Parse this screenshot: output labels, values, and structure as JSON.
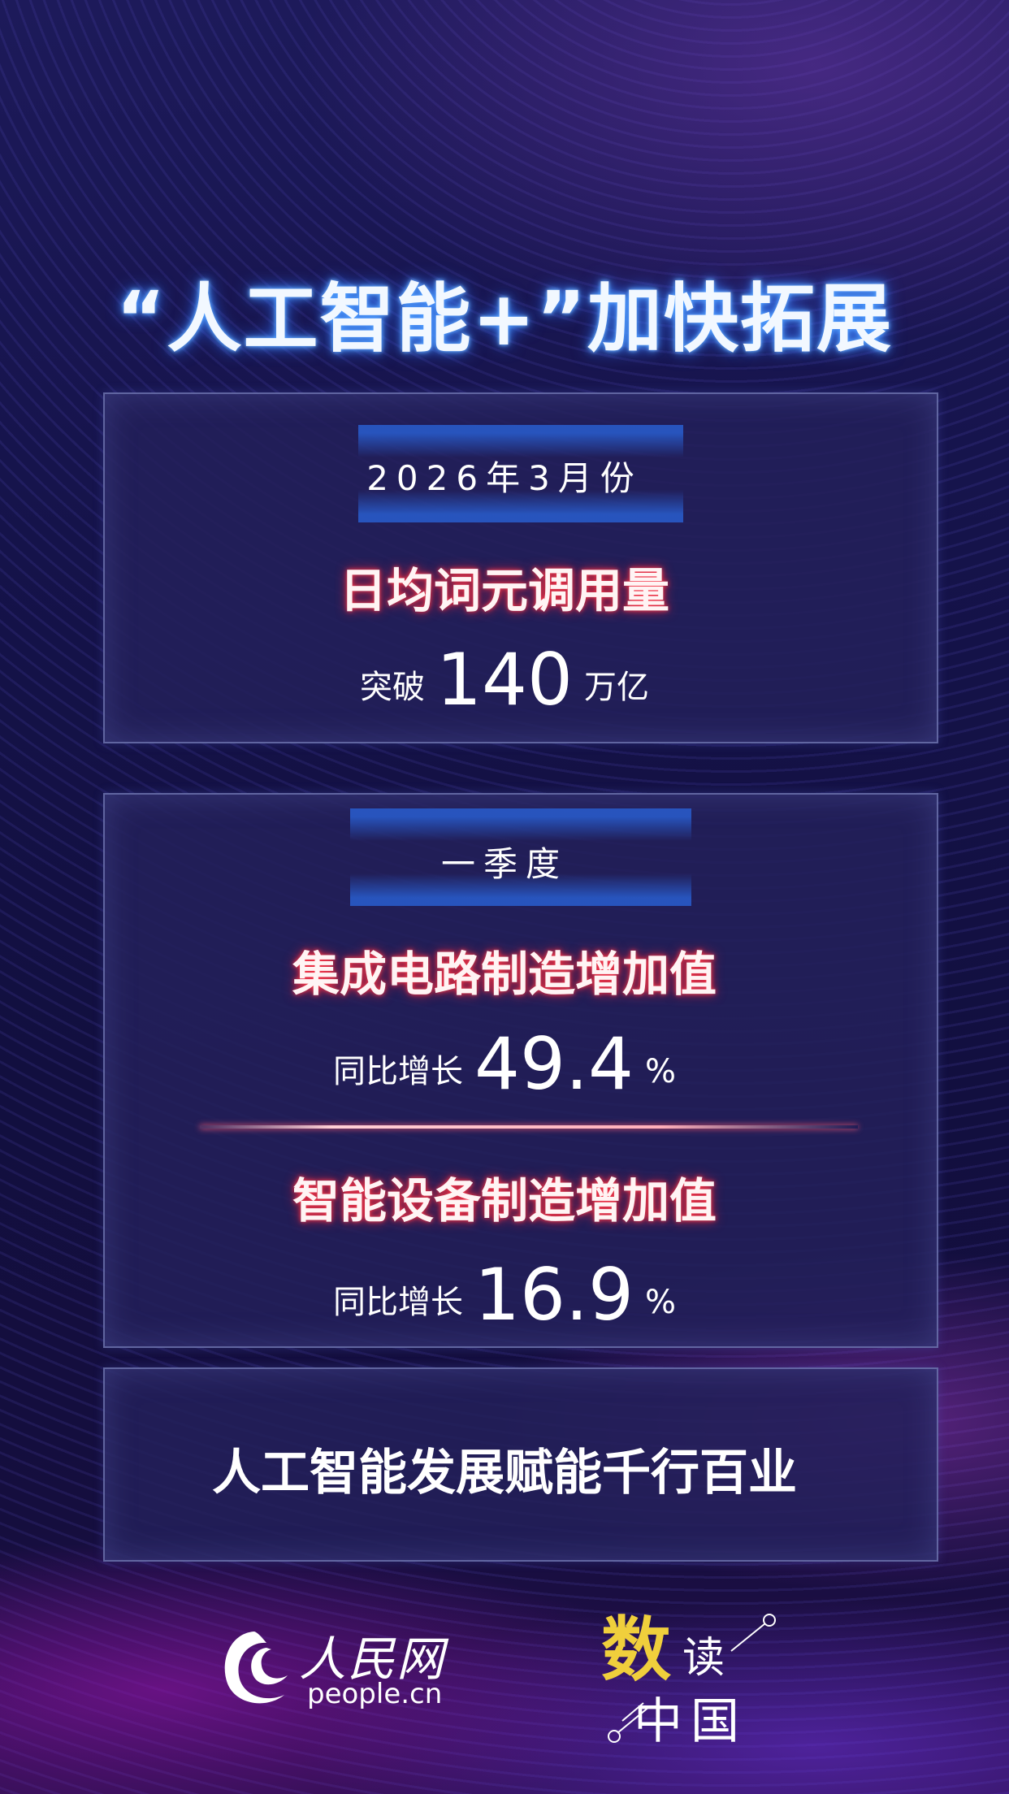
{
  "title": "“人工智能+”加快拓展",
  "card1": {
    "period": "2026年3月份",
    "metric": "日均词元调用量",
    "prefix": "突破",
    "value": "140",
    "unit": "万亿"
  },
  "card2": {
    "period": "一季度",
    "items": [
      {
        "metric": "集成电路制造增加值",
        "prefix": "同比增长",
        "value": "49.4",
        "unit": "%"
      },
      {
        "metric": "智能设备制造增加值",
        "prefix": "同比增长",
        "value": "16.9",
        "unit": "%"
      }
    ]
  },
  "card3": {
    "slogan": "人工智能发展赋能千行百业"
  },
  "footer": {
    "logo_cn": "人民网",
    "logo_en": "people.cn",
    "brand": {
      "accent": "数",
      "chars": [
        "读",
        "中",
        "国"
      ]
    }
  },
  "colors": {
    "accent_gold": "#f0cf3c",
    "glow_blue": "#4fa2ff",
    "glow_red": "#ff3a4a"
  }
}
